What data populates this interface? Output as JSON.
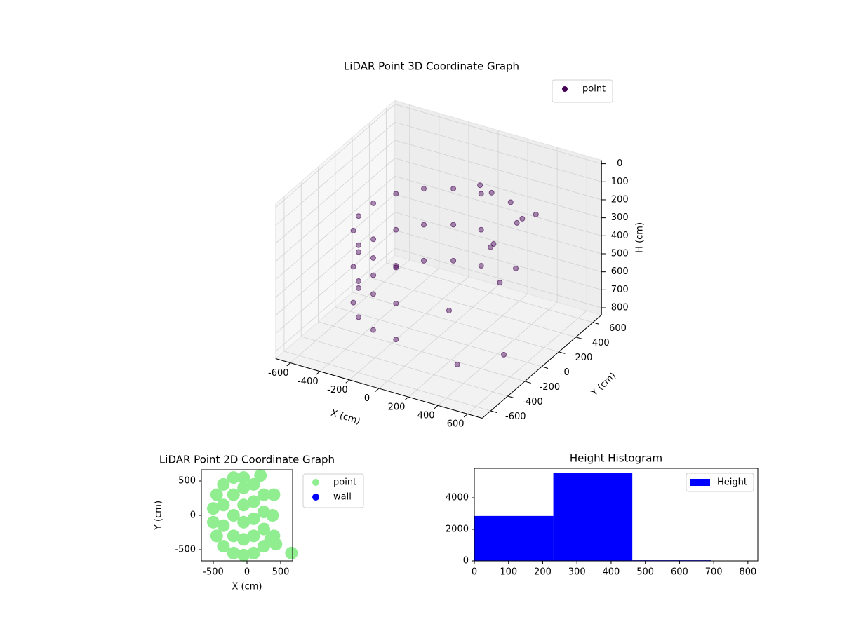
{
  "chart_data": [
    {
      "type": "scatter3d",
      "title": "LiDAR Point 3D Coordinate Graph",
      "xlabel": "X (cm)",
      "ylabel": "Y (cm)",
      "zlabel": "H (cm)",
      "xlim": [
        -700,
        700
      ],
      "ylim": [
        -700,
        700
      ],
      "zlim": [
        -20,
        840
      ],
      "zinvert": true,
      "xticks": [
        -600,
        -400,
        -200,
        0,
        200,
        400,
        600
      ],
      "yticks": [
        -600,
        -400,
        -200,
        0,
        200,
        400,
        600
      ],
      "zticks": [
        0,
        100,
        200,
        300,
        400,
        500,
        600,
        700,
        800
      ],
      "grid": true,
      "legend": "upper right",
      "series": [
        {
          "name": "point",
          "color": "#440154",
          "x": [
            0,
            -171,
            -321,
            -433,
            -492,
            -492,
            -433,
            -321,
            -171,
            0,
            0,
            -171,
            -321,
            -433,
            -492,
            -492,
            -433,
            -321,
            -171,
            0,
            0,
            -171,
            -321,
            -433,
            -492,
            -492,
            -433,
            -321,
            -171,
            0,
            100,
            200,
            300,
            250,
            150,
            350,
            50,
            400,
            300,
            200,
            300,
            500,
            100
          ],
          "y": [
            500,
            470,
            383,
            250,
            87,
            -87,
            -250,
            -383,
            -470,
            -500,
            500,
            470,
            383,
            250,
            87,
            -87,
            -250,
            -383,
            -470,
            -500,
            500,
            470,
            383,
            250,
            87,
            -87,
            -250,
            -383,
            -470,
            -500,
            450,
            500,
            400,
            550,
            350,
            300,
            400,
            450,
            200,
            300,
            -300,
            -100,
            -50
          ],
          "z": [
            250,
            250,
            250,
            250,
            250,
            250,
            250,
            250,
            250,
            250,
            450,
            450,
            450,
            450,
            450,
            450,
            450,
            450,
            450,
            450,
            650,
            650,
            650,
            650,
            650,
            650,
            650,
            650,
            650,
            650,
            200,
            250,
            300,
            350,
            450,
            500,
            150,
            250,
            550,
            400,
            800,
            780,
            650
          ]
        }
      ]
    },
    {
      "type": "scatter",
      "title": "LiDAR Point 2D Coordinate Graph",
      "xlabel": "X (cm)",
      "ylabel": "Y (cm)",
      "xlim": [
        -677,
        677
      ],
      "ylim": [
        -663,
        663
      ],
      "xticks": [
        -500,
        0,
        500
      ],
      "yticks": [
        -500,
        0,
        500
      ],
      "legend": "outside right",
      "series": [
        {
          "name": "point",
          "color": "#90ee90",
          "x": [
            -500,
            -500,
            -450,
            -450,
            -350,
            -350,
            -350,
            -350,
            -200,
            -200,
            -200,
            -200,
            -200,
            -50,
            -50,
            -50,
            -50,
            -50,
            100,
            100,
            100,
            100,
            100,
            250,
            250,
            250,
            250,
            -50,
            200,
            350,
            400,
            430,
            660,
            380,
            400
          ],
          "y": [
            -100,
            100,
            -300,
            300,
            -450,
            450,
            -150,
            150,
            -550,
            550,
            -300,
            0,
            300,
            -580,
            -350,
            -100,
            150,
            400,
            -550,
            -300,
            -50,
            200,
            450,
            -450,
            -200,
            50,
            300,
            550,
            580,
            -350,
            -300,
            -420,
            -550,
            0,
            300
          ]
        },
        {
          "name": "wall",
          "color": "#0000ff",
          "x": [],
          "y": []
        }
      ]
    },
    {
      "type": "histogram",
      "title": "Height Histogram",
      "bins": [
        0,
        231,
        462,
        693
      ],
      "values": [
        2850,
        5580,
        40
      ],
      "xlim": [
        0,
        829
      ],
      "ylim": [
        0,
        5867
      ],
      "xticks": [
        0,
        100,
        200,
        300,
        400,
        500,
        600,
        700,
        800
      ],
      "yticks": [
        0,
        2000,
        4000
      ],
      "series_name": "Height",
      "color": "#0000ff",
      "legend": "upper right"
    }
  ]
}
